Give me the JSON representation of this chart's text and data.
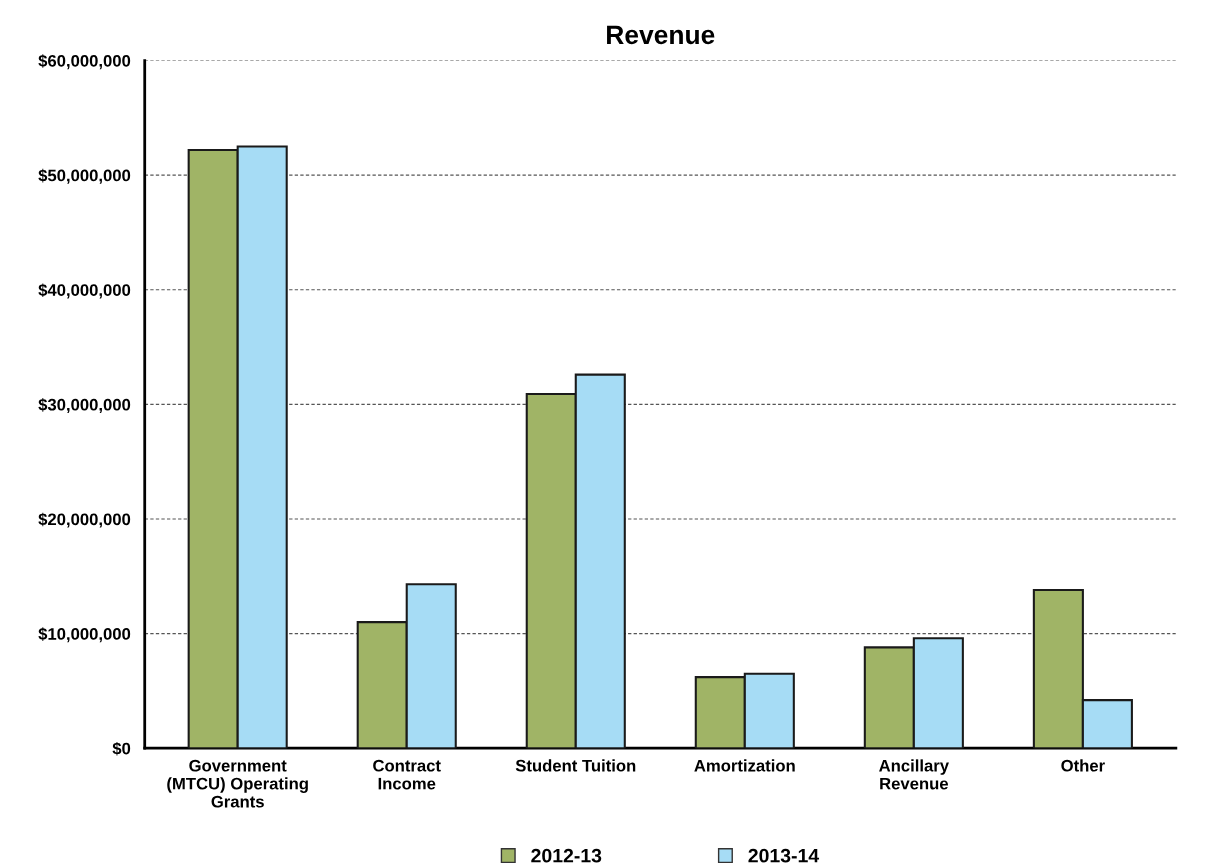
{
  "chart_data": {
    "type": "bar",
    "title": "Revenue",
    "categories": [
      "Government\n(MTCU) Operating\nGrants",
      "Contract\nIncome",
      "Student Tuition",
      "Amortization",
      "Ancillary\nRevenue",
      "Other"
    ],
    "series": [
      {
        "name": "2012-13",
        "color": "#a0b466",
        "values": [
          52200000,
          11000000,
          30900000,
          6200000,
          8800000,
          13800000
        ]
      },
      {
        "name": "2013-14",
        "color": "#a6dcf5",
        "values": [
          52500000,
          14300000,
          32600000,
          6500000,
          9600000,
          4200000
        ]
      }
    ],
    "ylim": [
      0,
      60000000
    ],
    "yticks": [
      {
        "value": 0,
        "label": "$0"
      },
      {
        "value": 10000000,
        "label": "$10,000,000"
      },
      {
        "value": 20000000,
        "label": "$20,000,000"
      },
      {
        "value": 30000000,
        "label": "$30,000,000"
      },
      {
        "value": 40000000,
        "label": "$40,000,000"
      },
      {
        "value": 50000000,
        "label": "$50,000,000"
      },
      {
        "value": 60000000,
        "label": "$60,000,000"
      }
    ],
    "grid": "y",
    "legend": "bottom"
  }
}
